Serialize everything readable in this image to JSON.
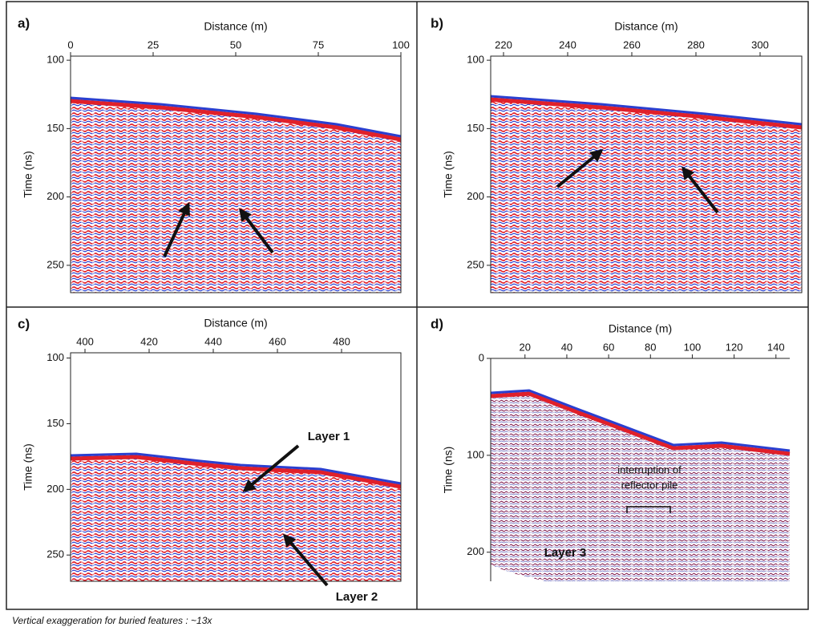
{
  "panels": [
    {
      "label": "a)",
      "x_label": "Distance (m)",
      "y_label": "Time (ns)",
      "xlim": [
        0,
        100
      ],
      "ylim": [
        97,
        270
      ],
      "xticks": [
        0,
        25,
        50,
        75,
        100
      ],
      "yticks": [
        100,
        150,
        200,
        250
      ],
      "annotations": []
    },
    {
      "label": "b)",
      "x_label": "Distance (m)",
      "y_label": "Time (ns)",
      "xlim": [
        216,
        313
      ],
      "ylim": [
        97,
        270
      ],
      "xticks": [
        220,
        240,
        260,
        280,
        300
      ],
      "yticks": [
        100,
        150,
        200,
        250
      ],
      "annotations": []
    },
    {
      "label": "c)",
      "x_label": "Distance (m)",
      "y_label": "Time (ns)",
      "xlim": [
        395.5,
        498.5
      ],
      "ylim": [
        96,
        270
      ],
      "xticks": [
        400,
        420,
        440,
        460,
        480
      ],
      "yticks": [
        100,
        150,
        200,
        250
      ],
      "annotations": [
        "Layer 1",
        "Layer 2"
      ]
    },
    {
      "label": "d)",
      "x_label": "Distance (m)",
      "y_label": "Time (ns)",
      "xlim": [
        3.6,
        146.6
      ],
      "ylim": [
        0,
        230
      ],
      "xticks": [
        20,
        40,
        60,
        80,
        100,
        120,
        140
      ],
      "yticks": [
        0,
        100,
        200
      ],
      "annotations": [
        "interruption of",
        "reflector pile",
        "Layer 3"
      ]
    }
  ],
  "caption": "Vertical exaggeration for buried features : ~13x"
}
